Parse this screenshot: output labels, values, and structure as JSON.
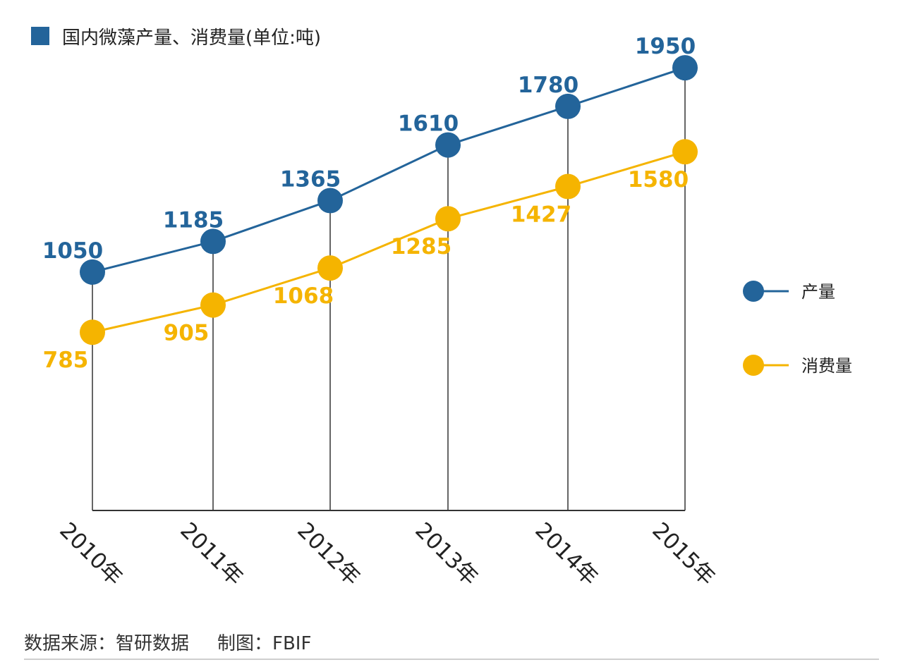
{
  "chart_data": {
    "type": "line",
    "title": "国内微藻产量、消费量(单位:吨)",
    "categories": [
      "2010年",
      "2011年",
      "2012年",
      "2013年",
      "2014年",
      "2015年"
    ],
    "series": [
      {
        "name": "产量",
        "color": "#23649a",
        "values": [
          1050,
          1185,
          1365,
          1610,
          1780,
          1950
        ],
        "labels": [
          "1050",
          "1185",
          "1365",
          "1610",
          "1780",
          "1950"
        ]
      },
      {
        "name": "消费量",
        "color": "#f5b400",
        "values": [
          785,
          905,
          1068,
          1285,
          1427,
          1580
        ],
        "labels": [
          "785",
          "905",
          "1068",
          "1285",
          "1427",
          "1580"
        ]
      }
    ],
    "ylim": [
      0,
      2000
    ],
    "grid": false,
    "legend": "right",
    "title_marker_color": "#23649a",
    "axis_color": "#333333"
  },
  "footer": {
    "source": "数据来源：智研数据",
    "credit": "制图：FBIF"
  }
}
